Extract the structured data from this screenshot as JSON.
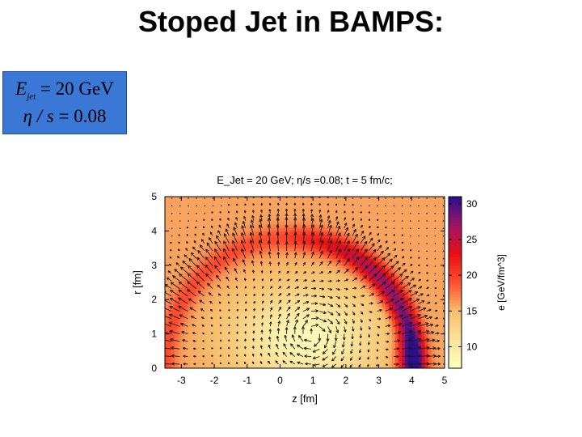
{
  "slide": {
    "title": "Stoped Jet in BAMPS:"
  },
  "info_box": {
    "line1_symbol": "E",
    "line1_subscript": "jet",
    "line1_value": " = 20 GeV",
    "line2_symbol": "η / s",
    "line2_value": " = 0.08"
  },
  "colors": {
    "info_box_bg": "#3b78d6",
    "colormap": [
      "#ffffc0",
      "#fbe49c",
      "#f6bf6e",
      "#ff5030",
      "#e80f14",
      "#a01565",
      "#2b0f8e"
    ]
  },
  "chart_data": {
    "type": "heatmap",
    "title": "E_Jet = 20 GeV; η/s =0.08; t = 5 fm/c;",
    "xlabel": "z [fm]",
    "ylabel": "r [fm]",
    "colorbar_label": "e [GeV/fm^3]",
    "xlim": [
      -3.5,
      5
    ],
    "ylim": [
      0,
      5
    ],
    "clim": [
      7,
      31
    ],
    "xticks": [
      -3,
      -2,
      -1,
      0,
      1,
      2,
      3,
      4,
      5
    ],
    "yticks": [
      0,
      1,
      2,
      3,
      4,
      5
    ],
    "cticks": [
      10,
      15,
      20,
      25,
      30
    ],
    "background_energy_density": 16,
    "features": [
      {
        "name": "shock front",
        "shape": "arc",
        "center_z": 0.3,
        "center_r": 0.0,
        "radius_fm": 3.8,
        "peak": 30,
        "width_fm": 0.35
      },
      {
        "name": "rarefaction region",
        "shape": "ellipse",
        "center_z": 0.8,
        "center_r": 0.9,
        "radius_z_fm": 2.2,
        "radius_r_fm": 1.5,
        "peak": 8
      },
      {
        "name": "head of jet",
        "shape": "blob",
        "center_z": 3.9,
        "center_r": 0.3,
        "peak": 31
      }
    ],
    "flow_field": {
      "description": "arrows showing collective flow; vortex ring centered near z=1, r=1 with strong outward flow along the shock front",
      "vortex_center_z": 1.0,
      "vortex_center_r": 1.0
    }
  }
}
